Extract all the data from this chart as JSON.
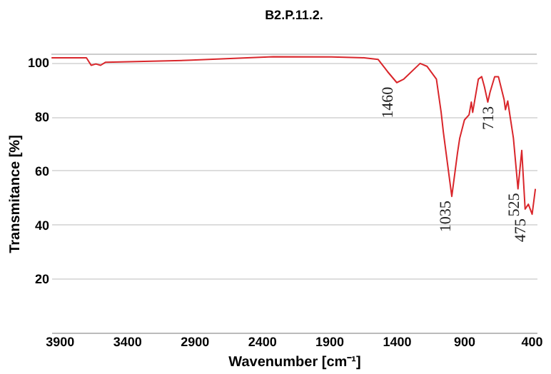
{
  "chart_data": {
    "type": "line",
    "title": "B2.P.11.2.",
    "xlabel": "Wavenumber [cm⁻¹]",
    "ylabel": "Transmitance [%]",
    "x": [
      3959,
      3700,
      3665,
      3630,
      3595,
      3560,
      2921,
      2315,
      1883,
      1640,
      1537,
      1467,
      1398,
      1346,
      1225,
      1173,
      1104,
      1069,
      1052,
      990,
      948,
      931,
      896,
      862,
      845,
      835,
      793,
      768,
      748,
      723,
      706,
      672,
      644,
      602,
      592,
      575,
      533,
      499,
      471,
      446,
      422,
      394,
      370
    ],
    "series": [
      {
        "color": "#d9262b",
        "values": [
          101.7,
          101.7,
          98.9,
          99.4,
          98.9,
          100,
          100.8,
          102.1,
          102,
          101.7,
          101.1,
          96.6,
          92.5,
          93.8,
          99.6,
          98.5,
          93.8,
          81.5,
          74,
          50.4,
          66.4,
          72,
          78.7,
          80.6,
          85.3,
          81.5,
          93.8,
          94.7,
          91,
          85.3,
          89,
          94.7,
          94.7,
          86.2,
          82.5,
          85.7,
          72,
          53.2,
          67.4,
          45.7,
          47.5,
          43.8,
          53.2
        ]
      }
    ],
    "xlim": [
      3960,
      360
    ],
    "xticks": [
      3900,
      3400,
      2900,
      2400,
      1900,
      1400,
      900,
      400
    ],
    "ylim": [
      0,
      103
    ],
    "yticks": [
      20,
      40,
      60,
      80,
      100
    ],
    "grid": "y",
    "line_style": "solid",
    "marker": "none",
    "annotations": [
      {
        "text": "1460",
        "x": 1460,
        "y": 92.5
      },
      {
        "text": "1035",
        "x": 1035,
        "y": 50.4
      },
      {
        "text": "713",
        "x": 713,
        "y": 85.3
      },
      {
        "text": "525",
        "x": 525,
        "y": 53.2
      },
      {
        "text": "475",
        "x": 475,
        "y": 43.8
      }
    ]
  }
}
